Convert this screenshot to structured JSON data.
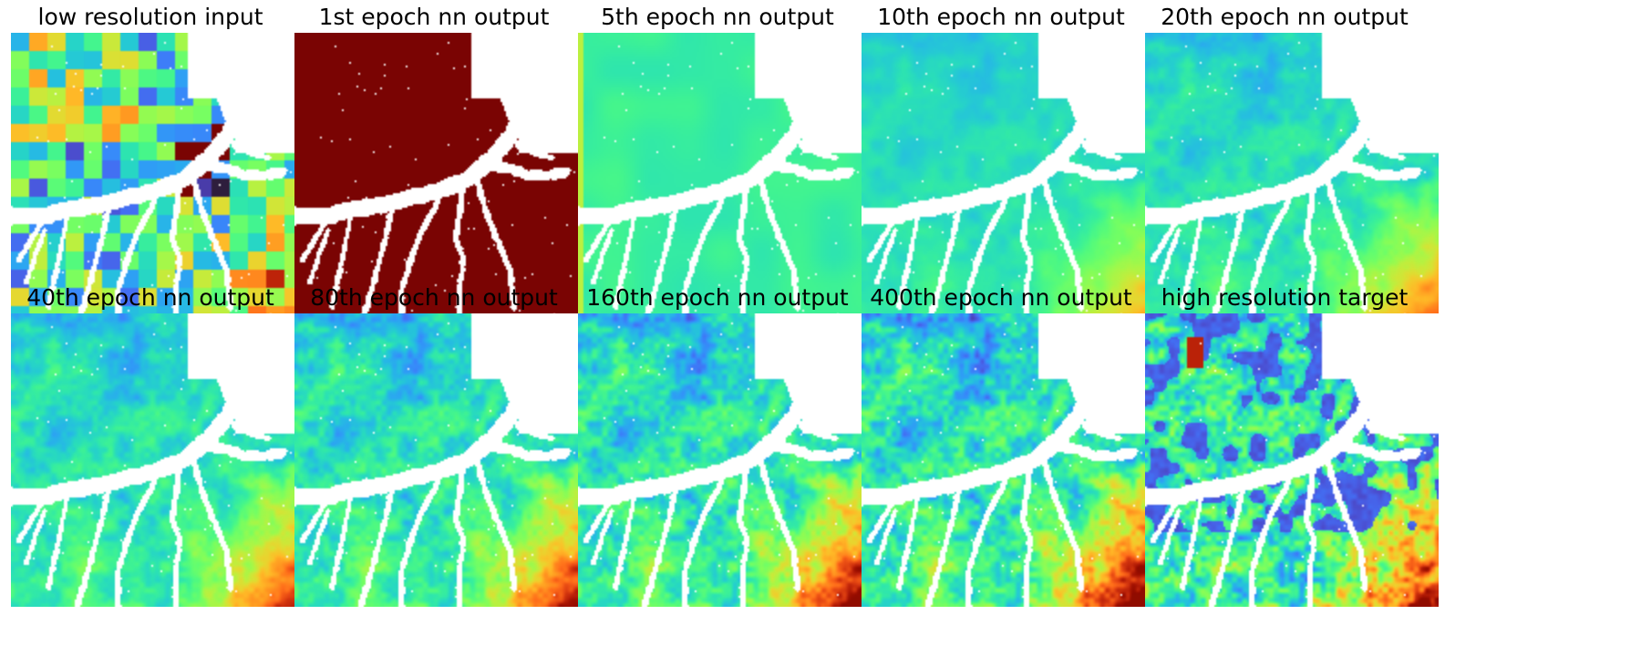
{
  "panels": [
    {
      "title": "low resolution input",
      "mode": "lowres",
      "level": 0
    },
    {
      "title": "1st epoch nn output",
      "mode": "flat",
      "level": 0
    },
    {
      "title": "5th epoch nn output",
      "mode": "smooth",
      "level": 0.1
    },
    {
      "title": "10th epoch nn output",
      "mode": "train",
      "level": 0.3
    },
    {
      "title": "20th epoch nn output",
      "mode": "train",
      "level": 0.45
    },
    {
      "title": "40th epoch nn output",
      "mode": "train",
      "level": 0.6
    },
    {
      "title": "80th epoch nn output",
      "mode": "train",
      "level": 0.72
    },
    {
      "title": "160th epoch nn output",
      "mode": "train",
      "level": 0.85
    },
    {
      "title": "400th epoch nn output",
      "mode": "train",
      "level": 0.95
    },
    {
      "title": "high resolution target",
      "mode": "target",
      "level": 1
    }
  ],
  "colors": {
    "background": "#ffffff",
    "water": "#ffffff",
    "first_epoch_fill": "#7a0403",
    "colormap": "turbo"
  }
}
